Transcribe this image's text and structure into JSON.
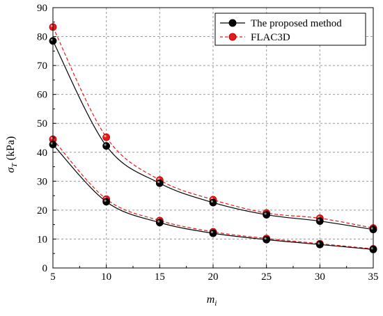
{
  "chart_data": {
    "type": "line",
    "xlabel": "m",
    "xlabel_sub": "i",
    "ylabel": "σ",
    "ylabel_sub": "T",
    "ylabel_unit": " (kPa)",
    "xlim": [
      5,
      35
    ],
    "ylim": [
      0,
      90
    ],
    "xticks": [
      5,
      10,
      15,
      20,
      25,
      30,
      35
    ],
    "yticks": [
      0,
      10,
      20,
      30,
      40,
      50,
      60,
      70,
      80,
      90
    ],
    "grid": true,
    "legend_position": "top-right",
    "x": [
      5,
      10,
      15,
      20,
      25,
      30,
      35
    ],
    "series": [
      {
        "name": "The proposed method",
        "color": "#000000",
        "marker_fill": "#000000",
        "line_style": "solid",
        "curves": [
          [
            78.5,
            42.2,
            29.3,
            22.6,
            18.4,
            16.2,
            13.3
          ],
          [
            42.7,
            22.9,
            15.7,
            12.0,
            9.8,
            8.1,
            6.4
          ]
        ]
      },
      {
        "name": "FLAC3D",
        "color": "#e8191b",
        "marker_fill": "#e8191b",
        "line_style": "dashed",
        "curves": [
          [
            83.3,
            45.2,
            30.4,
            23.6,
            19.0,
            17.2,
            13.8
          ],
          [
            44.5,
            23.8,
            16.4,
            12.5,
            10.2,
            8.4,
            6.6
          ]
        ]
      }
    ]
  }
}
